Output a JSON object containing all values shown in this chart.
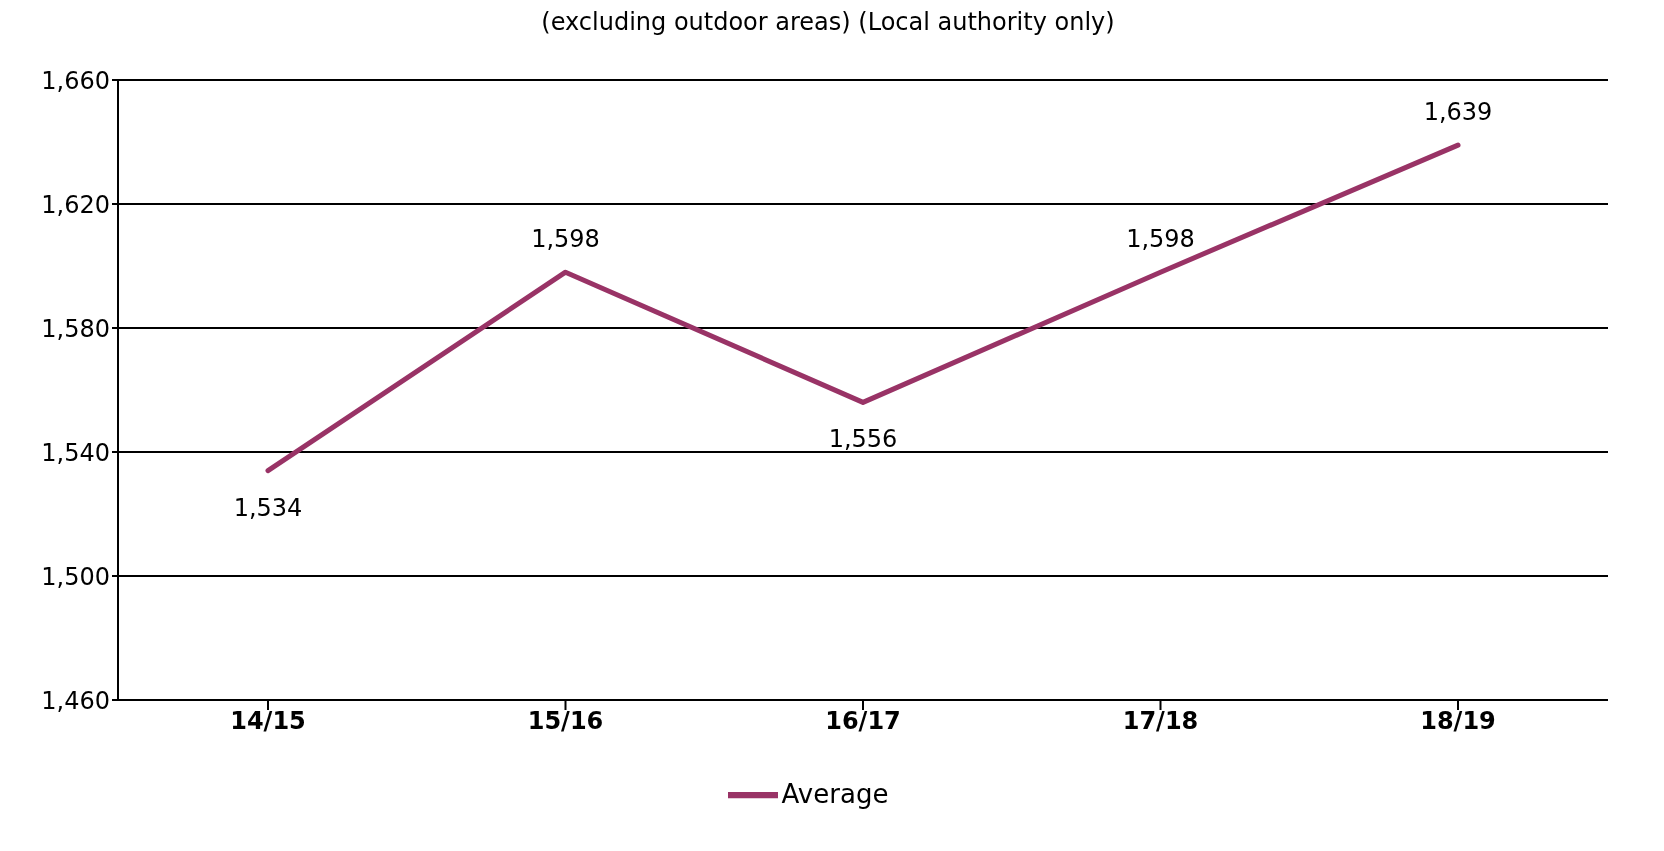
{
  "chart_data": {
    "type": "line",
    "title": "(excluding outdoor areas) (Local authority only)",
    "categories": [
      "14/15",
      "15/16",
      "16/17",
      "17/18",
      "18/19"
    ],
    "series": [
      {
        "name": "Average",
        "color": "#993366",
        "values": [
          1534,
          1598,
          1556,
          1598,
          1639
        ],
        "value_labels": [
          "1,534",
          "1,598",
          "1,556",
          "1,598",
          "1,639"
        ]
      }
    ],
    "ylim": [
      1460,
      1660
    ],
    "yticks": [
      {
        "value": 1460,
        "label": "1,460"
      },
      {
        "value": 1500,
        "label": "1,500"
      },
      {
        "value": 1540,
        "label": "1,540"
      },
      {
        "value": 1580,
        "label": "1,580"
      },
      {
        "value": 1620,
        "label": "1,620"
      },
      {
        "value": 1660,
        "label": "1,660"
      }
    ],
    "grid": "y",
    "legend": "bottom",
    "marker": "none",
    "line_style": "solid"
  }
}
